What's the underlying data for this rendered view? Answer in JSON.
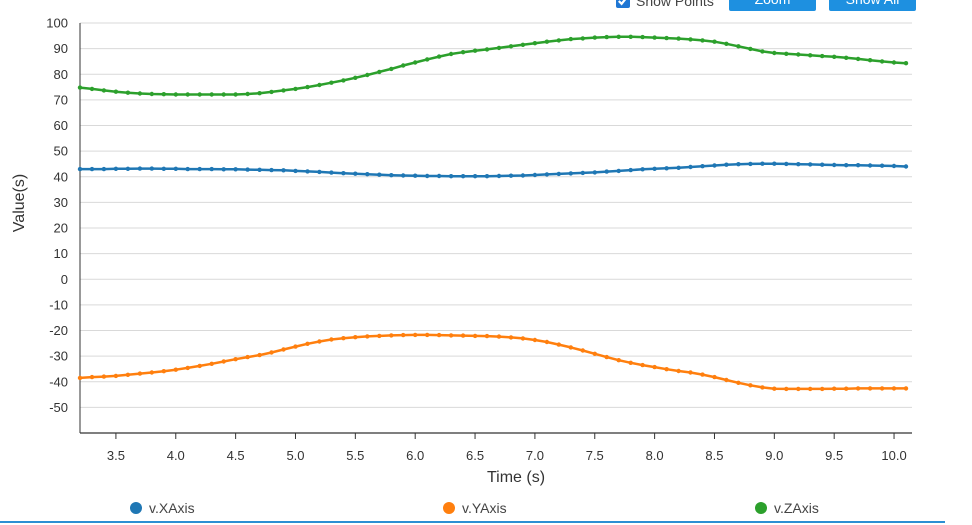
{
  "controls": {
    "show_points_label": "Show Points",
    "show_points_checked": true,
    "zoom_label": "Zoom",
    "show_all_label": "Show All"
  },
  "chart_data": {
    "type": "line",
    "xlabel": "Time (s)",
    "ylabel": "Value(s)",
    "xlim": [
      3.2,
      10.15
    ],
    "ylim": [
      -60,
      100
    ],
    "x_ticks": [
      "3.5",
      "4.0",
      "4.5",
      "5.0",
      "5.5",
      "6.0",
      "6.5",
      "7.0",
      "7.5",
      "8.0",
      "8.5",
      "9.0",
      "9.5",
      "10.0"
    ],
    "y_ticks": [
      "100",
      "90",
      "80",
      "70",
      "60",
      "50",
      "40",
      "30",
      "20",
      "10",
      "0",
      "-10",
      "-20",
      "-30",
      "-40",
      "-50"
    ],
    "grid": true,
    "legend_position": "bottom",
    "x": [
      3.2,
      3.3,
      3.4,
      3.5,
      3.6,
      3.7,
      3.8,
      3.9,
      4.0,
      4.1,
      4.2,
      4.3,
      4.4,
      4.5,
      4.6,
      4.7,
      4.8,
      4.9,
      5.0,
      5.1,
      5.2,
      5.3,
      5.4,
      5.5,
      5.6,
      5.7,
      5.8,
      5.9,
      6.0,
      6.1,
      6.2,
      6.3,
      6.4,
      6.5,
      6.6,
      6.7,
      6.8,
      6.9,
      7.0,
      7.1,
      7.2,
      7.3,
      7.4,
      7.5,
      7.6,
      7.7,
      7.8,
      7.9,
      8.0,
      8.1,
      8.2,
      8.3,
      8.4,
      8.5,
      8.6,
      8.7,
      8.8,
      8.9,
      9.0,
      9.1,
      9.2,
      9.3,
      9.4,
      9.5,
      9.6,
      9.7,
      9.8,
      9.9,
      10.0,
      10.1
    ],
    "series": [
      {
        "name": "v.XAxis",
        "color": "#1f77b4",
        "values": [
          43,
          43,
          43,
          43.1,
          43.1,
          43.2,
          43.2,
          43.1,
          43.1,
          43,
          43,
          43,
          42.9,
          42.9,
          42.8,
          42.7,
          42.6,
          42.5,
          42.3,
          42.1,
          41.9,
          41.6,
          41.4,
          41.2,
          41,
          40.8,
          40.6,
          40.5,
          40.4,
          40.3,
          40.3,
          40.2,
          40.2,
          40.2,
          40.2,
          40.3,
          40.4,
          40.5,
          40.7,
          40.9,
          41.1,
          41.3,
          41.5,
          41.7,
          42,
          42.3,
          42.6,
          42.9,
          43.1,
          43.3,
          43.5,
          43.8,
          44.1,
          44.4,
          44.7,
          44.9,
          45,
          45.1,
          45.1,
          45,
          44.9,
          44.8,
          44.7,
          44.6,
          44.5,
          44.5,
          44.4,
          44.3,
          44.2,
          44
        ]
      },
      {
        "name": "v.YAxis",
        "color": "#ff7f0e",
        "values": [
          -38.5,
          -38.2,
          -38,
          -37.7,
          -37.3,
          -36.8,
          -36.4,
          -35.9,
          -35.3,
          -34.6,
          -33.8,
          -33,
          -32.1,
          -31.2,
          -30.4,
          -29.6,
          -28.6,
          -27.4,
          -26.3,
          -25.2,
          -24.3,
          -23.5,
          -23,
          -22.6,
          -22.3,
          -22.1,
          -21.9,
          -21.8,
          -21.7,
          -21.7,
          -21.8,
          -21.9,
          -22,
          -22.1,
          -22.2,
          -22.4,
          -22.7,
          -23.1,
          -23.7,
          -24.5,
          -25.5,
          -26.6,
          -27.8,
          -29.1,
          -30.4,
          -31.6,
          -32.6,
          -33.5,
          -34.3,
          -35.1,
          -35.8,
          -36.4,
          -37.2,
          -38.2,
          -39.3,
          -40.4,
          -41.4,
          -42.2,
          -42.7,
          -42.8,
          -42.8,
          -42.8,
          -42.8,
          -42.7,
          -42.7,
          -42.6,
          -42.6,
          -42.6,
          -42.6,
          -42.6
        ]
      },
      {
        "name": "v.ZAxis",
        "color": "#2ca02c",
        "values": [
          74.8,
          74.3,
          73.7,
          73.2,
          72.8,
          72.5,
          72.3,
          72.2,
          72.1,
          72.1,
          72.1,
          72.1,
          72.1,
          72.1,
          72.3,
          72.6,
          73.1,
          73.7,
          74.3,
          75,
          75.8,
          76.7,
          77.6,
          78.6,
          79.7,
          80.9,
          82.1,
          83.4,
          84.6,
          85.8,
          86.9,
          87.9,
          88.6,
          89.2,
          89.7,
          90.3,
          90.9,
          91.5,
          92.1,
          92.7,
          93.2,
          93.7,
          94,
          94.3,
          94.5,
          94.6,
          94.6,
          94.5,
          94.3,
          94.1,
          93.9,
          93.6,
          93.2,
          92.7,
          91.9,
          90.9,
          89.9,
          88.9,
          88.3,
          88,
          87.7,
          87.4,
          87.1,
          86.8,
          86.4,
          86,
          85.5,
          85,
          84.6,
          84.3
        ]
      }
    ]
  }
}
